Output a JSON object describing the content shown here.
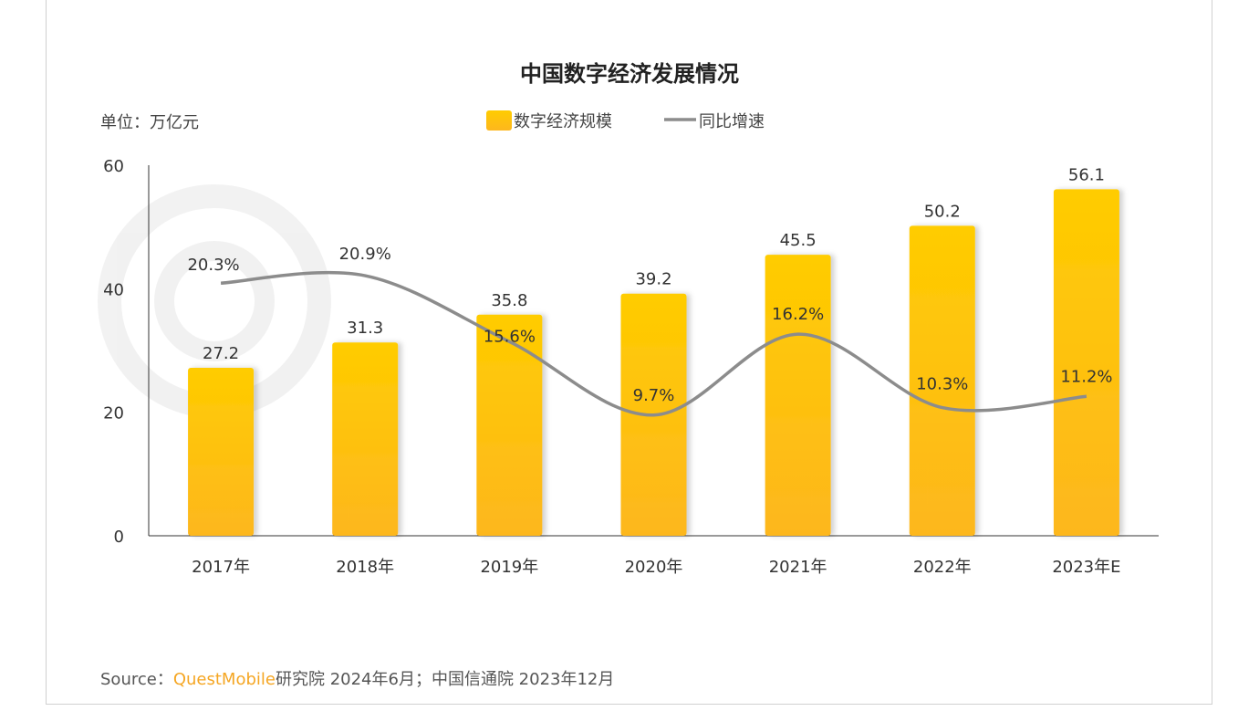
{
  "chart_data": {
    "type": "bar",
    "title": "中国数字经济发展情况",
    "unit_label": "单位：万亿元",
    "categories": [
      "2017年",
      "2018年",
      "2019年",
      "2020年",
      "2021年",
      "2022年",
      "2023年E"
    ],
    "series": [
      {
        "name": "数字经济规模",
        "type": "bar",
        "values": [
          27.2,
          31.3,
          35.8,
          39.2,
          45.5,
          50.2,
          56.1
        ],
        "labels": [
          "27.2",
          "31.3",
          "35.8",
          "39.2",
          "45.5",
          "50.2",
          "56.1"
        ],
        "color": "#FFC700"
      },
      {
        "name": "同比增速",
        "type": "line",
        "values": [
          20.3,
          20.9,
          15.6,
          9.7,
          16.2,
          10.3,
          11.2
        ],
        "labels": [
          "20.3%",
          "20.9%",
          "15.6%",
          "9.7%",
          "16.2%",
          "10.3%",
          "11.2%"
        ],
        "color": "#8c8c8c",
        "axis": "secondary"
      }
    ],
    "ylim": [
      0,
      60
    ],
    "yticks": [
      "0",
      "20",
      "40",
      "60"
    ],
    "y2lim": [
      0,
      30
    ],
    "grid": false,
    "legend": "top-center"
  },
  "source": {
    "prefix": "Source：",
    "brand": "QuestMobile",
    "rest": "研究院 2024年6月；中国信通院 2023年12月"
  },
  "watermark": "QUESTMOBILE",
  "colors": {
    "bar_top": "#FFCC00",
    "bar_bottom": "#FDB71E",
    "line": "#8c8c8c",
    "brand": "#F5A623"
  }
}
